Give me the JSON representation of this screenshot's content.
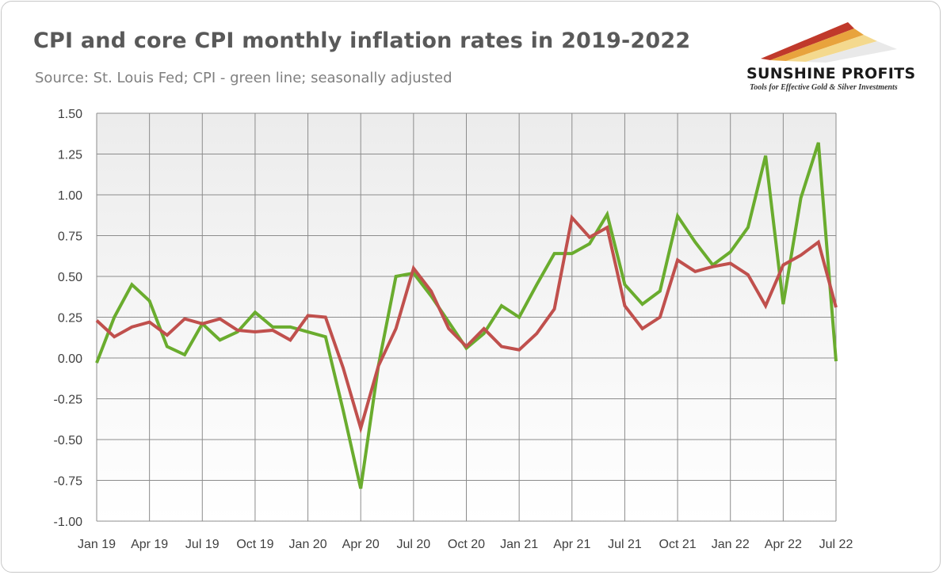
{
  "header": {
    "title": "CPI and core CPI monthly inflation rates in 2019-2022",
    "subtitle": "Source: St. Louis Fed; CPI - green line; seasonally adjusted"
  },
  "logo": {
    "name": "SUNSHINE PROFITS",
    "tagline": "Tools for Effective Gold & Silver Investments"
  },
  "chart_data": {
    "type": "line",
    "title": "CPI and core CPI monthly inflation rates in 2019-2022",
    "ylim": [
      -1.0,
      1.5
    ],
    "y_ticks": [
      "1.50",
      "1.25",
      "1.00",
      "0.75",
      "0.50",
      "0.25",
      "0.00",
      "-0.25",
      "-0.50",
      "-0.75",
      "-1.00"
    ],
    "y_tick_values": [
      1.5,
      1.25,
      1.0,
      0.75,
      0.5,
      0.25,
      0.0,
      -0.25,
      -0.5,
      -0.75,
      -1.0
    ],
    "x": [
      "Jan 19",
      "Feb 19",
      "Mar 19",
      "Apr 19",
      "May 19",
      "Jun 19",
      "Jul 19",
      "Aug 19",
      "Sep 19",
      "Oct 19",
      "Nov 19",
      "Dec 19",
      "Jan 20",
      "Feb 20",
      "Mar 20",
      "Apr 20",
      "May 20",
      "Jun 20",
      "Jul 20",
      "Aug 20",
      "Sep 20",
      "Oct 20",
      "Nov 20",
      "Dec 20",
      "Jan 21",
      "Feb 21",
      "Mar 21",
      "Apr 21",
      "May 21",
      "Jun 21",
      "Jul 21",
      "Aug 21",
      "Sep 21",
      "Oct 21",
      "Nov 21",
      "Dec 21",
      "Jan 22",
      "Feb 22",
      "Mar 22",
      "Apr 22",
      "May 22",
      "Jun 22",
      "Jul 22"
    ],
    "x_tick_labels": [
      "Jan 19",
      "Apr 19",
      "Jul 19",
      "Oct 19",
      "Jan 20",
      "Apr 20",
      "Jul 20",
      "Oct 20",
      "Jan 21",
      "Apr 21",
      "Jul 21",
      "Oct 21",
      "Jan 22",
      "Apr 22",
      "Jul 22"
    ],
    "grid": true,
    "series": [
      {
        "color": "#6aac2e",
        "values": [
          -0.03,
          0.25,
          0.45,
          0.35,
          0.07,
          0.02,
          0.21,
          0.11,
          0.16,
          0.28,
          0.19,
          0.19,
          0.16,
          0.13,
          -0.32,
          -0.8,
          -0.05,
          0.5,
          0.52,
          0.38,
          0.22,
          0.06,
          0.15,
          0.32,
          0.25,
          0.45,
          0.64,
          0.64,
          0.7,
          0.88,
          0.45,
          0.33,
          0.41,
          0.87,
          0.71,
          0.57,
          0.65,
          0.8,
          1.24,
          0.33,
          0.98,
          1.32,
          -0.02
        ]
      },
      {
        "color": "#c0504d",
        "values": [
          0.23,
          0.13,
          0.19,
          0.22,
          0.14,
          0.24,
          0.21,
          0.24,
          0.17,
          0.16,
          0.17,
          0.11,
          0.26,
          0.25,
          -0.06,
          -0.43,
          -0.05,
          0.18,
          0.55,
          0.41,
          0.18,
          0.07,
          0.18,
          0.07,
          0.05,
          0.15,
          0.3,
          0.86,
          0.74,
          0.8,
          0.32,
          0.18,
          0.25,
          0.6,
          0.53,
          0.56,
          0.58,
          0.51,
          0.32,
          0.57,
          0.63,
          0.71,
          0.31
        ]
      }
    ]
  }
}
